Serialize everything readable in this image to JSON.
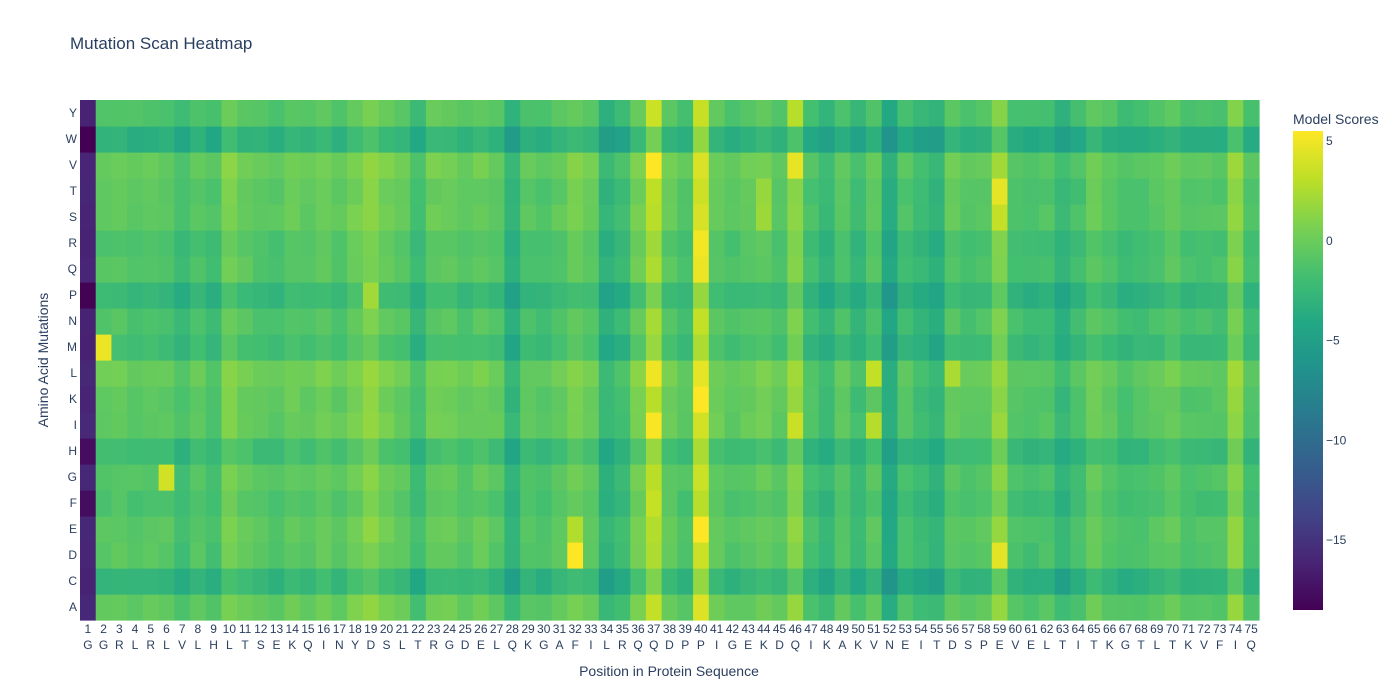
{
  "chart_data": {
    "type": "heatmap",
    "title": "Mutation Scan Heatmap",
    "xlabel": "Position in Protein Sequence",
    "ylabel": "Amino Acid Mutations",
    "colorbar": {
      "title": "Model Scores",
      "colorscale": "viridis",
      "zmin": -18.5,
      "zmax": 5.5,
      "ticks": [
        5,
        0,
        -5,
        -10,
        -15
      ],
      "tick_labels": [
        "5",
        "0",
        "−5",
        "−10",
        "−15"
      ]
    },
    "x_positions": [
      "1",
      "2",
      "3",
      "4",
      "5",
      "6",
      "7",
      "8",
      "9",
      "10",
      "11",
      "12",
      "13",
      "14",
      "15",
      "16",
      "17",
      "18",
      "19",
      "20",
      "21",
      "22",
      "23",
      "24",
      "25",
      "26",
      "27",
      "28",
      "29",
      "30",
      "31",
      "32",
      "33",
      "34",
      "35",
      "36",
      "37",
      "38",
      "39",
      "40",
      "41",
      "42",
      "43",
      "44",
      "45",
      "46",
      "47",
      "48",
      "49",
      "50",
      "51",
      "52",
      "53",
      "54",
      "55",
      "56",
      "57",
      "58",
      "59",
      "60",
      "61",
      "62",
      "63",
      "64",
      "65",
      "66",
      "67",
      "68",
      "69",
      "70",
      "71",
      "72",
      "73",
      "74",
      "75"
    ],
    "x_residues": [
      "G",
      "G",
      "R",
      "L",
      "R",
      "L",
      "V",
      "L",
      "H",
      "L",
      "T",
      "S",
      "E",
      "K",
      "Q",
      "I",
      "N",
      "Y",
      "D",
      "S",
      "L",
      "T",
      "R",
      "G",
      "D",
      "E",
      "L",
      "Q",
      "K",
      "G",
      "A",
      "F",
      "I",
      "L",
      "R",
      "Q",
      "Q",
      "D",
      "P",
      "P",
      "I",
      "G",
      "E",
      "K",
      "D",
      "Q",
      "I",
      "K",
      "A",
      "K",
      "V",
      "N",
      "E",
      "I",
      "T",
      "D",
      "S",
      "P",
      "E",
      "V",
      "E",
      "L",
      "T",
      "I",
      "T",
      "K",
      "G",
      "T",
      "L",
      "T",
      "K",
      "V",
      "F",
      "I",
      "Q"
    ],
    "y_categories": [
      "A",
      "C",
      "D",
      "E",
      "F",
      "G",
      "H",
      "I",
      "K",
      "L",
      "M",
      "N",
      "P",
      "Q",
      "R",
      "S",
      "T",
      "V",
      "W",
      "Y"
    ],
    "position_baseline": [
      -16,
      -1,
      -0.8,
      -1.2,
      -1,
      -1.2,
      -2,
      -1.1,
      -1.8,
      0.3,
      -0.6,
      -1,
      -1.3,
      -0.6,
      -1,
      -0.3,
      -1,
      0,
      0.8,
      -0.2,
      -0.8,
      -2.2,
      -0.4,
      -0.4,
      -1,
      -0.5,
      -1,
      -3.3,
      -1.2,
      -1.5,
      -0.9,
      0,
      -0.6,
      -3.2,
      -2.3,
      0,
      2.5,
      -0.6,
      -1.4,
      3.5,
      -0.6,
      -1.2,
      -0.8,
      -0.4,
      -1.1,
      1,
      -1.8,
      -2.8,
      -1.2,
      -2.4,
      -1,
      -4.2,
      -1.7,
      -2.5,
      -3.2,
      -0.8,
      -1.3,
      -1,
      1,
      -1.5,
      -1.9,
      -1.6,
      -3,
      -1.9,
      -0.5,
      -1.2,
      -1.9,
      -1.7,
      -1.2,
      -0.6,
      -1.5,
      -1.4,
      -1.4,
      1,
      -1.8
    ],
    "row_offsets": {
      "A": 0.6,
      "C": -1.8,
      "D": 0.2,
      "E": 0.4,
      "F": -0.3,
      "G": 0.2,
      "H": -1,
      "I": 0.6,
      "K": 0.5,
      "L": 1,
      "M": -1,
      "N": -0.2,
      "P": -1.5,
      "Q": 0,
      "R": -0.3,
      "S": 0.5,
      "T": 0.3,
      "V": 0.9,
      "W": -2.2,
      "Y": 0
    },
    "position_offsets_extra": {
      "1": {
        "W": -2.5,
        "P": -2.5,
        "H": -1.5,
        "F": -1.5
      },
      "2": {
        "M": 7
      },
      "6": {
        "G": 5
      },
      "19": {
        "P": 3
      },
      "32": {
        "D": 6,
        "E": 2
      },
      "37": {
        "V": 2.5,
        "I": 2.5,
        "F": 1,
        "L": 1.5,
        "Y": 1
      },
      "40": {
        "R": 2,
        "Q": 1.5,
        "K": 2,
        "E": 1.5
      },
      "44": {
        "T": 2,
        "S": 2
      },
      "46": {
        "V": 2.5,
        "I": 2,
        "Y": 2
      },
      "51": {
        "L": 3,
        "I": 3
      },
      "56": {
        "L": 2
      },
      "59": {
        "D": 3,
        "T": 3,
        "S": 2
      }
    }
  }
}
